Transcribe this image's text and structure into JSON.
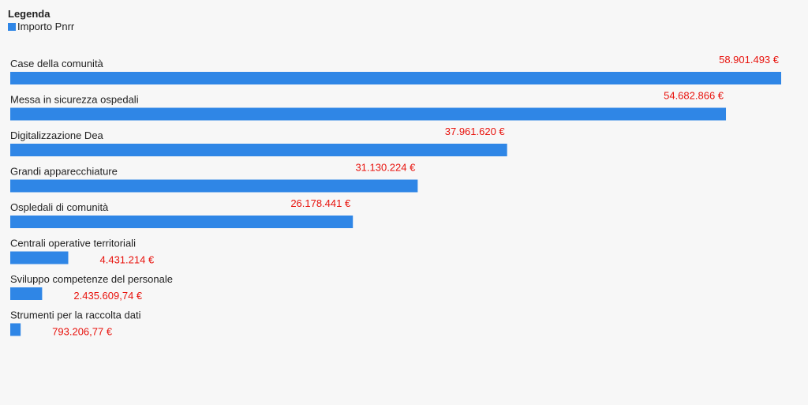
{
  "legend": {
    "title": "Legenda",
    "series_name": "Importo Pnrr"
  },
  "colors": {
    "bar": "#2f86e6",
    "value_label": "#e8120c"
  },
  "chart_data": {
    "type": "bar",
    "orientation": "horizontal",
    "title": "",
    "xlabel": "",
    "ylabel": "",
    "legend_position": "top-left",
    "grid": false,
    "categories": [
      "Case della comunità",
      "Messa in sicurezza ospedali",
      "Digitalizzazione Dea",
      "Grandi apparecchiature",
      "Ospledali di comunità",
      "Centrali operative territoriali",
      "Sviluppo competenze del personale",
      "Strumenti per la raccolta dati"
    ],
    "series": [
      {
        "name": "Importo Pnrr",
        "values": [
          58901493,
          54682866,
          37961620,
          31130224,
          26178441,
          4431214,
          2435609.74,
          793206.77
        ],
        "labels": [
          "58.901.493 €",
          "54.682.866 €",
          "37.961.620 €",
          "31.130.224 €",
          "26.178.441 €",
          "4.431.214 €",
          "2.435.609,74 €",
          "793.206,77 €"
        ]
      }
    ]
  }
}
